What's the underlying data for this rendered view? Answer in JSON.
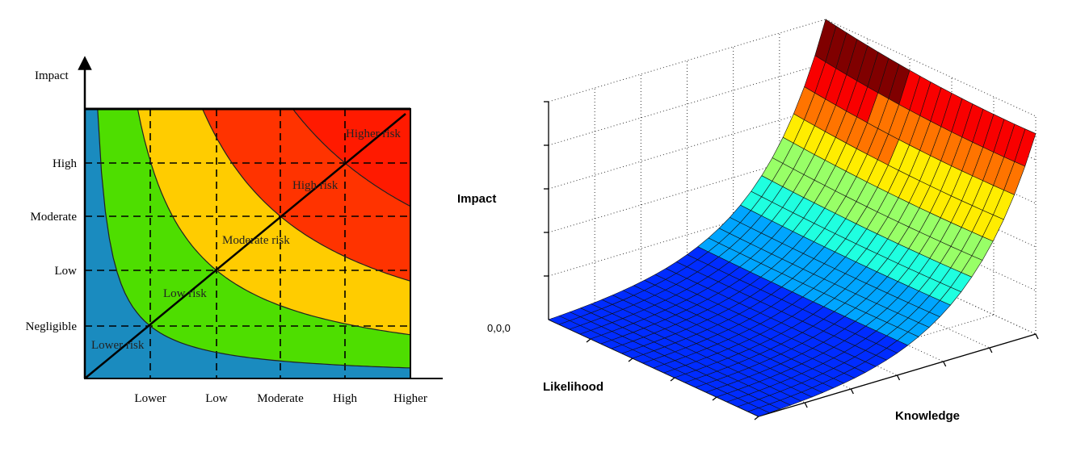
{
  "chart_data": [
    {
      "type": "heatmap",
      "ylabel": "Impact",
      "x_tick_labels": [
        "Lower",
        "Low",
        "Moderate",
        "High",
        "Higher"
      ],
      "y_tick_labels": [
        "Negligible",
        "Low",
        "Moderate",
        "High"
      ],
      "zones": [
        {
          "name": "Lower risk",
          "color": "#1a8bbf"
        },
        {
          "name": "Low risk",
          "color": "#4ede00"
        },
        {
          "name": "Moderate risk",
          "color": "#ffcc00"
        },
        {
          "name": "High risk",
          "color": "#ff3300"
        },
        {
          "name": "Higher risk",
          "color": "#ff1a00"
        }
      ],
      "boundaries": [
        {
          "between": [
            "Lower risk",
            "Low risk"
          ],
          "passes_through": [
            1,
            1
          ]
        },
        {
          "between": [
            "Low risk",
            "Moderate risk"
          ],
          "passes_through": [
            2,
            2
          ]
        },
        {
          "between": [
            "Moderate risk",
            "High risk"
          ],
          "passes_through": [
            3,
            3
          ]
        },
        {
          "between": [
            "High risk",
            "Higher risk"
          ],
          "passes_through": [
            4,
            4
          ]
        }
      ],
      "diagonal": true,
      "grid": "dashed at tick positions"
    },
    {
      "type": "surface",
      "xlabel": "Likelihood",
      "ylabel": "Knowledge",
      "zlabel": "Impact",
      "origin_label": "0,0,0",
      "grid": true,
      "colormap": "jet"
    }
  ]
}
